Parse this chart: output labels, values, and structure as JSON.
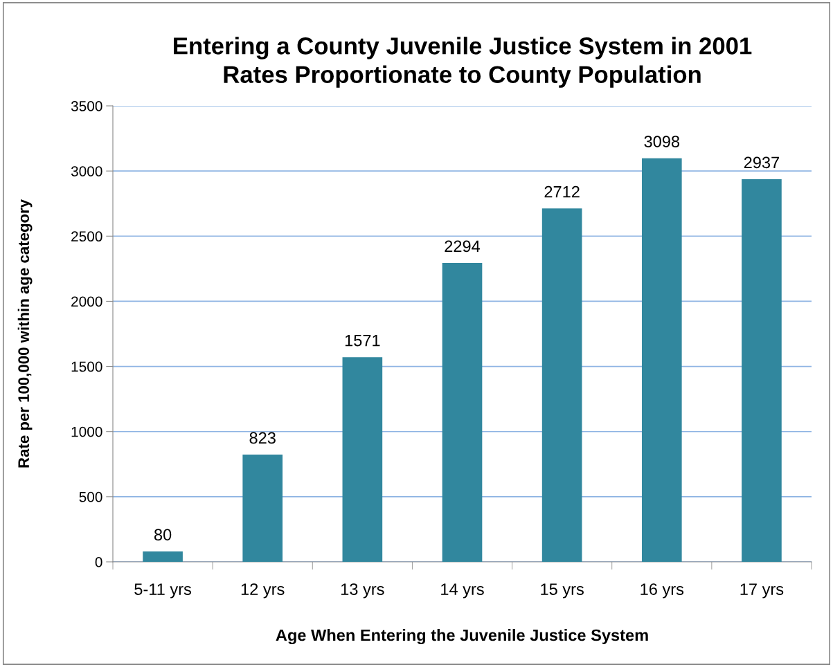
{
  "chart_data": {
    "type": "bar",
    "title": "Entering a County Juvenile Justice System in 2001\nRates Proportionate to County Population",
    "xlabel": "Age When Entering the Juvenile Justice System",
    "ylabel": "Rate per 100,000 within age category",
    "categories": [
      "5-11 yrs",
      "12 yrs",
      "13 yrs",
      "14 yrs",
      "15 yrs",
      "16 yrs",
      "17 yrs"
    ],
    "values": [
      80,
      823,
      1571,
      2294,
      2712,
      3098,
      2937
    ],
    "color": "#31879e",
    "ylim": [
      0,
      3500
    ],
    "yticks": [
      0,
      500,
      1000,
      1500,
      2000,
      2500,
      3000,
      3500
    ],
    "grid": "y",
    "data_labels": true,
    "legend": false
  }
}
